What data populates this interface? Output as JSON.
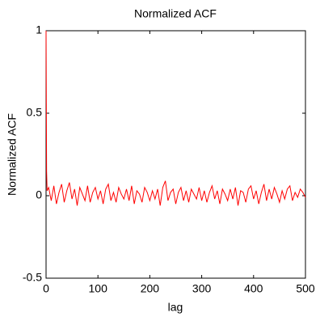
{
  "chart_data": {
    "type": "line",
    "title": "Normalized ACF",
    "xlabel": "lag",
    "ylabel": "Normalized ACF",
    "x": [
      0,
      1,
      2,
      5,
      10,
      15,
      20,
      25,
      30,
      35,
      40,
      45,
      50,
      55,
      60,
      65,
      70,
      75,
      80,
      85,
      90,
      95,
      100,
      105,
      110,
      115,
      120,
      125,
      130,
      135,
      140,
      145,
      150,
      155,
      160,
      165,
      170,
      175,
      180,
      185,
      190,
      195,
      200,
      205,
      210,
      215,
      220,
      225,
      230,
      235,
      240,
      245,
      250,
      255,
      260,
      265,
      270,
      275,
      280,
      285,
      290,
      295,
      300,
      305,
      310,
      315,
      320,
      325,
      330,
      335,
      340,
      345,
      350,
      355,
      360,
      365,
      370,
      375,
      380,
      385,
      390,
      395,
      400,
      405,
      410,
      415,
      420,
      425,
      430,
      435,
      440,
      445,
      450,
      455,
      460,
      465,
      470,
      475,
      480,
      485,
      490,
      495,
      500
    ],
    "series": [
      {
        "name": "Normalized ACF",
        "color": "#ff0000",
        "values": [
          1,
          0.15,
          0.03,
          0.05,
          -0.03,
          0.06,
          -0.05,
          0.02,
          0.07,
          -0.04,
          0.03,
          0.08,
          -0.02,
          0.04,
          -0.06,
          0.05,
          0.01,
          -0.03,
          0.06,
          -0.04,
          0.02,
          0.05,
          -0.02,
          0.03,
          -0.05,
          0.04,
          0.07,
          -0.03,
          0.02,
          -0.04,
          0.05,
          0.01,
          -0.02,
          0.04,
          -0.03,
          0.06,
          -0.05,
          0.03,
          0.01,
          -0.04,
          0.05,
          0.02,
          -0.03,
          0.03,
          -0.02,
          0.04,
          -0.06,
          0.05,
          0.09,
          -0.03,
          0.02,
          0.04,
          -0.05,
          0.02,
          0.05,
          -0.03,
          0.03,
          -0.04,
          0.04,
          0.01,
          -0.02,
          0.05,
          -0.03,
          0.03,
          -0.04,
          0.02,
          0.06,
          -0.02,
          0.03,
          -0.05,
          0.04,
          0.01,
          -0.03,
          0.04,
          -0.02,
          0.05,
          -0.06,
          0.03,
          0.02,
          -0.04,
          0.04,
          0.06,
          -0.02,
          0.03,
          -0.05,
          0.02,
          0.07,
          -0.03,
          0.04,
          -0.02,
          0.05,
          0.01,
          -0.04,
          0.03,
          -0.02,
          0.04,
          0.06,
          -0.03,
          0.02,
          -0.01,
          0.04,
          0.02,
          -0.01
        ]
      }
    ],
    "xlim": [
      0,
      500
    ],
    "xticks": [
      0,
      100,
      200,
      300,
      400,
      500
    ],
    "ylim": [
      -0.5,
      1
    ],
    "yticks": [
      -0.5,
      0,
      0.5,
      1
    ],
    "grid": false
  }
}
